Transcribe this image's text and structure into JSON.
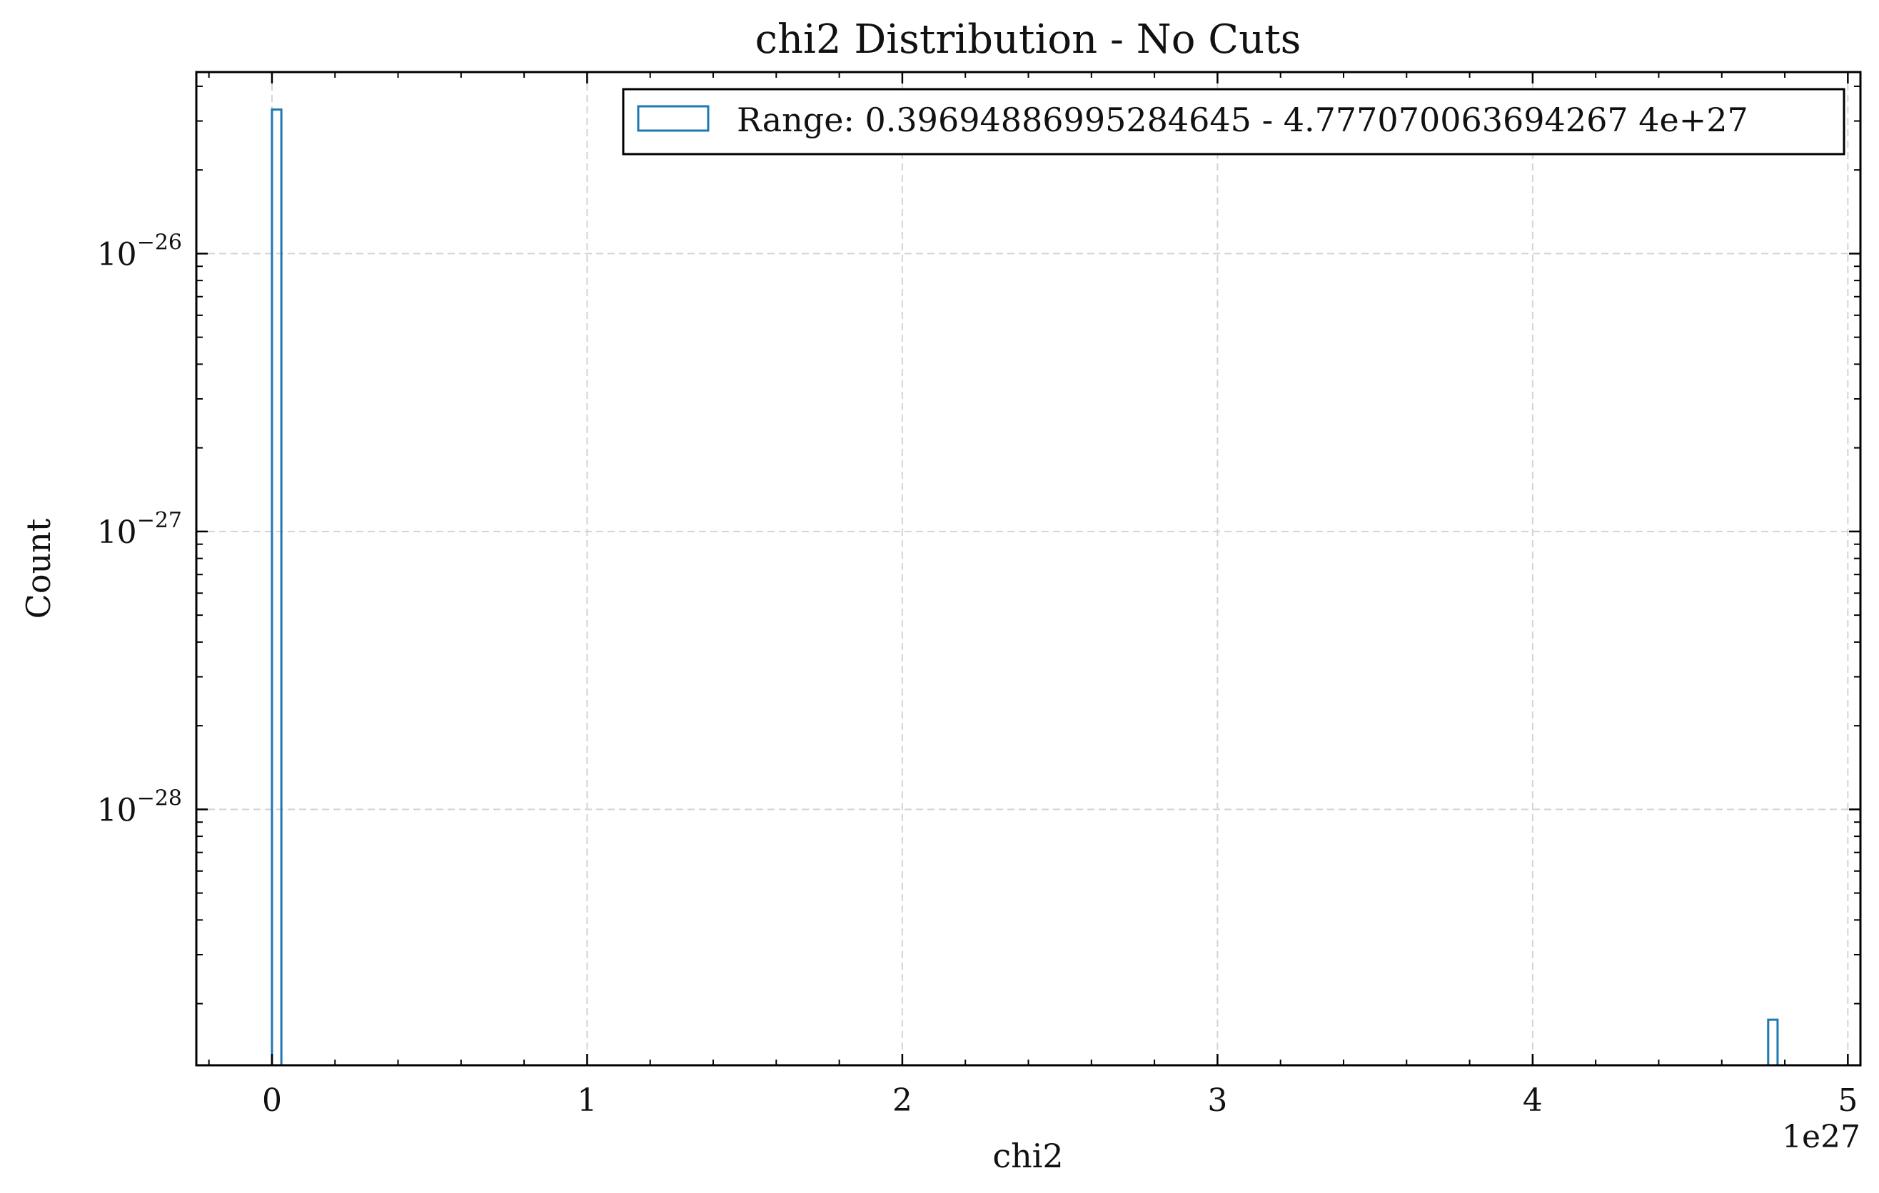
{
  "chart_data": {
    "type": "bar",
    "title": "chi2 Distribution - No Cuts",
    "xlabel": "chi2",
    "ylabel": "Count",
    "x_offset_label": "1e27",
    "xscale": "linear",
    "yscale": "log",
    "xlim": [
      -0.24,
      5.04
    ],
    "ylim": [
      1.2e-29,
      4.5e-26
    ],
    "x_ticks": [
      0,
      1,
      2,
      3,
      4,
      5
    ],
    "x_tick_labels": [
      "0",
      "1",
      "2",
      "3",
      "4",
      "5"
    ],
    "y_ticks": [
      1e-26,
      1e-27,
      1e-28
    ],
    "y_tick_labels": [
      {
        "base": "10",
        "exp": "−26"
      },
      {
        "base": "10",
        "exp": "−27"
      },
      {
        "base": "10",
        "exp": "−28"
      }
    ],
    "grid": true,
    "histtype": "step",
    "color": "#1f77b4",
    "legend": {
      "placement": "top-right",
      "entries": [
        "Range: 0.39694886995284645 - 4.777070063694267 4e+27"
      ]
    },
    "series": [
      {
        "name": "Range: 0.39694886995284645 - 4.777070063694267 4e+27",
        "bins": [
          {
            "x0": 0.0,
            "x1": 0.0298,
            "count": 3.3e-26
          },
          {
            "x0": 4.7473,
            "x1": 4.7771,
            "count": 1.75e-29
          }
        ]
      }
    ]
  }
}
